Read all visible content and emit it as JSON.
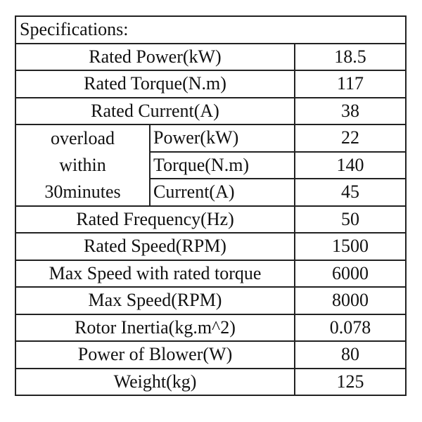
{
  "title": "Specifications:",
  "rows": [
    {
      "label": "Rated Power(kW)",
      "value": "18.5"
    },
    {
      "label": "Rated Torque(N.m)",
      "value": "117"
    },
    {
      "label": "Rated Current(A)",
      "value": "38"
    }
  ],
  "overload": {
    "label_lines": [
      "overload",
      "within",
      "30minutes"
    ],
    "rows": [
      {
        "label": "Power(kW)",
        "value": "22"
      },
      {
        "label": "Torque(N.m)",
        "value": "140"
      },
      {
        "label": "Current(A)",
        "value": "45"
      }
    ]
  },
  "rows2": [
    {
      "label": "Rated Frequency(Hz)",
      "value": "50"
    },
    {
      "label": "Rated Speed(RPM)",
      "value": "1500"
    },
    {
      "label": "Max Speed with rated torque",
      "value": "6000"
    },
    {
      "label": "Max Speed(RPM)",
      "value": "8000"
    },
    {
      "label": "Rotor Inertia(kg.m^2)",
      "value": "0.078"
    },
    {
      "label": "Power of Blower(W)",
      "value": "80"
    },
    {
      "label": "Weight(kg)",
      "value": "125"
    }
  ]
}
